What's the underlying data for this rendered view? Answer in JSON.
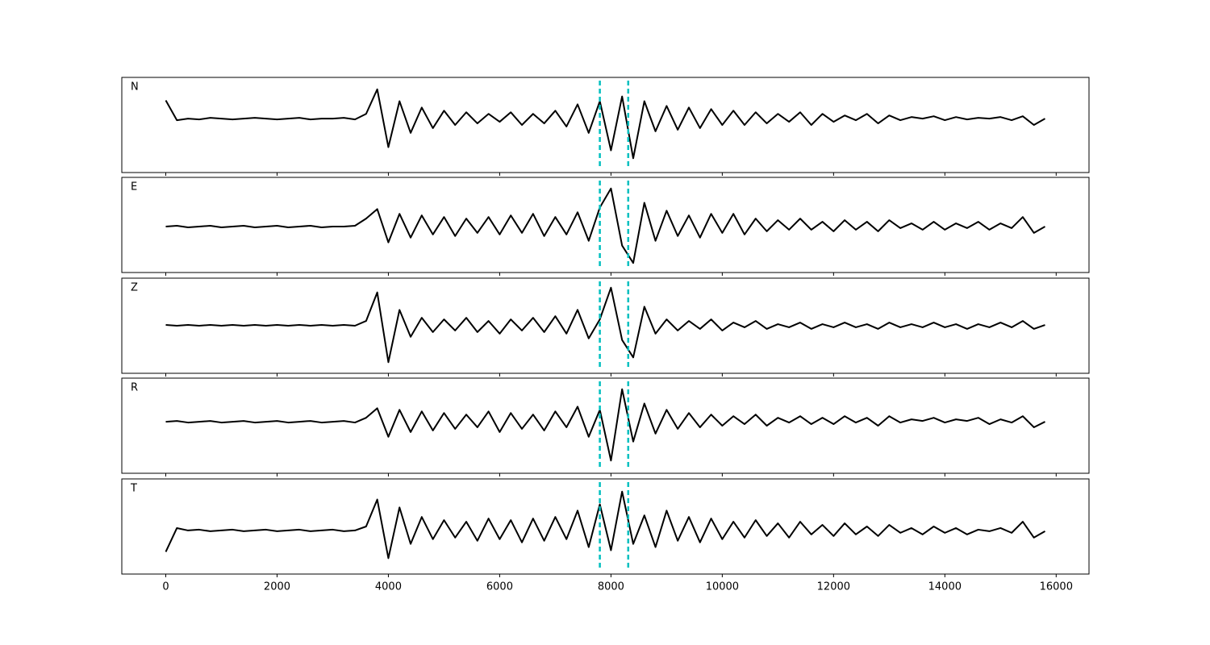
{
  "chart_data": {
    "type": "line",
    "x": [
      0,
      200,
      400,
      600,
      800,
      1000,
      1200,
      1400,
      1600,
      1800,
      2000,
      2200,
      2400,
      2600,
      2800,
      3000,
      3200,
      3400,
      3600,
      3800,
      4000,
      4200,
      4400,
      4600,
      4800,
      5000,
      5200,
      5400,
      5600,
      5800,
      6000,
      6200,
      6400,
      6600,
      6800,
      7000,
      7200,
      7400,
      7600,
      7800,
      8000,
      8200,
      8400,
      8600,
      8800,
      9000,
      9200,
      9400,
      9600,
      9800,
      10000,
      10200,
      10400,
      10600,
      10800,
      11000,
      11200,
      11400,
      11600,
      11800,
      12000,
      12200,
      12400,
      12600,
      12800,
      13000,
      13200,
      13400,
      13600,
      13800,
      14000,
      14200,
      14400,
      14600,
      14800,
      15000,
      15200,
      15400,
      15600,
      15800
    ],
    "series": [
      {
        "name": "N",
        "color": "#000000",
        "values": [
          31,
          6,
          8,
          7,
          9,
          8,
          7,
          8,
          9,
          8,
          7,
          8,
          9,
          7,
          8,
          8,
          9,
          7,
          14,
          45,
          -28,
          30,
          -10,
          22,
          -4,
          18,
          0,
          16,
          2,
          14,
          4,
          16,
          0,
          14,
          2,
          18,
          -2,
          26,
          -10,
          30,
          -32,
          36,
          -42,
          30,
          -8,
          24,
          -6,
          22,
          -4,
          20,
          0,
          18,
          0,
          16,
          2,
          14,
          4,
          16,
          0,
          14,
          4,
          12,
          6,
          14,
          2,
          12,
          6,
          10,
          8,
          11,
          6,
          10,
          7,
          9,
          8,
          10,
          6,
          11,
          0,
          8
        ]
      },
      {
        "name": "E",
        "color": "#000000",
        "values": [
          -2,
          -1,
          -3,
          -2,
          -1,
          -3,
          -2,
          -1,
          -3,
          -2,
          -1,
          -3,
          -2,
          -1,
          -3,
          -2,
          -2,
          -1,
          8,
          20,
          -22,
          14,
          -16,
          12,
          -12,
          10,
          -14,
          8,
          -10,
          10,
          -12,
          12,
          -10,
          14,
          -14,
          10,
          -12,
          16,
          -20,
          22,
          46,
          -26,
          -48,
          28,
          -20,
          18,
          -14,
          12,
          -16,
          14,
          -10,
          14,
          -12,
          8,
          -8,
          6,
          -6,
          8,
          -6,
          4,
          -8,
          6,
          -6,
          4,
          -8,
          6,
          -4,
          2,
          -6,
          4,
          -6,
          2,
          -4,
          4,
          -6,
          2,
          -4,
          10,
          -10,
          -2
        ]
      },
      {
        "name": "Z",
        "color": "#000000",
        "values": [
          1,
          0,
          1,
          0,
          1,
          0,
          1,
          0,
          1,
          0,
          1,
          0,
          1,
          0,
          1,
          0,
          1,
          0,
          6,
          42,
          -46,
          20,
          -14,
          10,
          -8,
          8,
          -6,
          10,
          -8,
          6,
          -10,
          8,
          -6,
          10,
          -8,
          12,
          -10,
          20,
          -16,
          8,
          48,
          -18,
          -40,
          24,
          -10,
          8,
          -6,
          6,
          -4,
          8,
          -6,
          4,
          -2,
          6,
          -4,
          2,
          -2,
          4,
          -4,
          2,
          -2,
          4,
          -2,
          2,
          -4,
          4,
          -2,
          2,
          -2,
          4,
          -2,
          2,
          -4,
          2,
          -2,
          4,
          -2,
          6,
          -4,
          1
        ]
      },
      {
        "name": "R",
        "color": "#000000",
        "values": [
          5,
          6,
          4,
          5,
          6,
          4,
          5,
          6,
          4,
          5,
          6,
          4,
          5,
          6,
          4,
          5,
          6,
          4,
          10,
          22,
          -14,
          20,
          -8,
          18,
          -6,
          16,
          -4,
          14,
          -2,
          18,
          -8,
          16,
          -4,
          14,
          -6,
          18,
          -2,
          24,
          -14,
          20,
          -44,
          46,
          -20,
          28,
          -10,
          20,
          -4,
          16,
          -2,
          14,
          0,
          12,
          2,
          14,
          0,
          10,
          4,
          12,
          2,
          10,
          2,
          12,
          4,
          10,
          0,
          12,
          4,
          8,
          6,
          10,
          4,
          8,
          6,
          10,
          2,
          8,
          4,
          12,
          -2,
          5
        ]
      },
      {
        "name": "T",
        "color": "#000000",
        "values": [
          -32,
          -2,
          -5,
          -4,
          -6,
          -5,
          -4,
          -6,
          -5,
          -4,
          -6,
          -5,
          -4,
          -6,
          -5,
          -4,
          -6,
          -5,
          0,
          34,
          -40,
          24,
          -22,
          12,
          -16,
          8,
          -14,
          6,
          -18,
          10,
          -16,
          8,
          -20,
          10,
          -18,
          12,
          -16,
          20,
          -26,
          28,
          -30,
          44,
          -22,
          14,
          -26,
          20,
          -18,
          12,
          -20,
          10,
          -16,
          6,
          -14,
          8,
          -12,
          4,
          -14,
          6,
          -10,
          2,
          -12,
          4,
          -10,
          0,
          -12,
          2,
          -8,
          -2,
          -10,
          0,
          -8,
          -2,
          -10,
          -4,
          -6,
          -2,
          -8,
          6,
          -14,
          -6
        ]
      }
    ],
    "xlim": [
      -790,
      16590
    ],
    "xticks": [
      0,
      2000,
      4000,
      6000,
      8000,
      10000,
      12000,
      14000,
      16000
    ],
    "ylim": [
      -60,
      60
    ],
    "vlines": [
      7800,
      8310
    ],
    "vline_color": "#00bfbf"
  }
}
